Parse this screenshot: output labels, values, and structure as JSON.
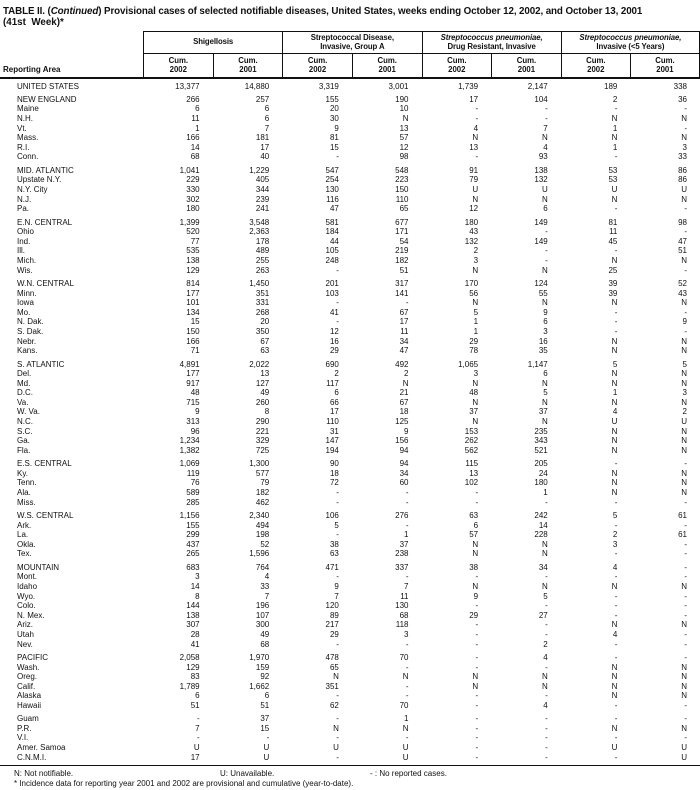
{
  "title": {
    "part1": "TABLE II. (",
    "continued": "Continued",
    "part2": ") Provisional cases of selected notifiable diseases, United States, weeks ending October 12, 2002, and October 13, 2001",
    "line2": "(41st  Week)*"
  },
  "table": {
    "header": {
      "reporting_area": "Reporting Area",
      "groups": [
        {
          "line1": "Shigellosis",
          "line1_italic": false,
          "line2": null,
          "subcolumns": [
            {
              "label": "Cum.",
              "year": "2002"
            },
            {
              "label": "Cum.",
              "year": "2001"
            }
          ]
        },
        {
          "line1": "Streptococcal Disease,",
          "line1_italic": false,
          "line2": "Invasive, Group A",
          "subcolumns": [
            {
              "label": "Cum.",
              "year": "2002"
            },
            {
              "label": "Cum.",
              "year": "2001"
            }
          ]
        },
        {
          "line1": "Streptococcus pneumoniae,",
          "line1_italic": true,
          "line2": "Drug Resistant, Invasive",
          "subcolumns": [
            {
              "label": "Cum.",
              "year": "2002"
            },
            {
              "label": "Cum.",
              "year": "2001"
            }
          ]
        },
        {
          "line1": "Streptococcus pneumoniae,",
          "line1_italic": true,
          "line2": "Invasive (<5 Years)",
          "subcolumns": [
            {
              "label": "Cum.",
              "year": "2002"
            },
            {
              "label": "Cum.",
              "year": "2001"
            }
          ]
        }
      ]
    },
    "groups": [
      {
        "rows": [
          {
            "area": "UNITED STATES",
            "values": [
              "13,377",
              "14,880",
              "3,319",
              "3,001",
              "1,739",
              "2,147",
              "189",
              "338"
            ]
          }
        ]
      },
      {
        "rows": [
          {
            "area": "NEW ENGLAND",
            "values": [
              "266",
              "257",
              "155",
              "190",
              "17",
              "104",
              "2",
              "36"
            ]
          },
          {
            "area": "Maine",
            "values": [
              "6",
              "6",
              "20",
              "10",
              "-",
              "-",
              "-",
              "-"
            ]
          },
          {
            "area": "N.H.",
            "values": [
              "11",
              "6",
              "30",
              "N",
              "-",
              "-",
              "N",
              "N"
            ]
          },
          {
            "area": "Vt.",
            "values": [
              "1",
              "7",
              "9",
              "13",
              "4",
              "7",
              "1",
              "-"
            ]
          },
          {
            "area": "Mass.",
            "values": [
              "166",
              "181",
              "81",
              "57",
              "N",
              "N",
              "N",
              "N"
            ]
          },
          {
            "area": "R.I.",
            "values": [
              "14",
              "17",
              "15",
              "12",
              "13",
              "4",
              "1",
              "3"
            ]
          },
          {
            "area": "Conn.",
            "values": [
              "68",
              "40",
              "-",
              "98",
              "-",
              "93",
              "-",
              "33"
            ]
          }
        ]
      },
      {
        "rows": [
          {
            "area": "MID. ATLANTIC",
            "values": [
              "1,041",
              "1,229",
              "547",
              "548",
              "91",
              "138",
              "53",
              "86"
            ]
          },
          {
            "area": "Upstate N.Y.",
            "values": [
              "229",
              "405",
              "254",
              "223",
              "79",
              "132",
              "53",
              "86"
            ]
          },
          {
            "area": "N.Y. City",
            "values": [
              "330",
              "344",
              "130",
              "150",
              "U",
              "U",
              "U",
              "U"
            ]
          },
          {
            "area": "N.J.",
            "values": [
              "302",
              "239",
              "116",
              "110",
              "N",
              "N",
              "N",
              "N"
            ]
          },
          {
            "area": "Pa.",
            "values": [
              "180",
              "241",
              "47",
              "65",
              "12",
              "6",
              "-",
              "-"
            ]
          }
        ]
      },
      {
        "rows": [
          {
            "area": "E.N. CENTRAL",
            "values": [
              "1,399",
              "3,548",
              "581",
              "677",
              "180",
              "149",
              "81",
              "98"
            ]
          },
          {
            "area": "Ohio",
            "values": [
              "520",
              "2,363",
              "184",
              "171",
              "43",
              "-",
              "11",
              "-"
            ]
          },
          {
            "area": "Ind.",
            "values": [
              "77",
              "178",
              "44",
              "54",
              "132",
              "149",
              "45",
              "47"
            ]
          },
          {
            "area": "Ill.",
            "values": [
              "535",
              "489",
              "105",
              "219",
              "2",
              "-",
              "-",
              "51"
            ]
          },
          {
            "area": "Mich.",
            "values": [
              "138",
              "255",
              "248",
              "182",
              "3",
              "-",
              "N",
              "N"
            ]
          },
          {
            "area": "Wis.",
            "values": [
              "129",
              "263",
              "-",
              "51",
              "N",
              "N",
              "25",
              "-"
            ]
          }
        ]
      },
      {
        "rows": [
          {
            "area": "W.N. CENTRAL",
            "values": [
              "814",
              "1,450",
              "201",
              "317",
              "170",
              "124",
              "39",
              "52"
            ]
          },
          {
            "area": "Minn.",
            "values": [
              "177",
              "351",
              "103",
              "141",
              "56",
              "55",
              "39",
              "43"
            ]
          },
          {
            "area": "Iowa",
            "values": [
              "101",
              "331",
              "-",
              "-",
              "N",
              "N",
              "N",
              "N"
            ]
          },
          {
            "area": "Mo.",
            "values": [
              "134",
              "268",
              "41",
              "67",
              "5",
              "9",
              "-",
              "-"
            ]
          },
          {
            "area": "N. Dak.",
            "values": [
              "15",
              "20",
              "-",
              "17",
              "1",
              "6",
              "-",
              "9"
            ]
          },
          {
            "area": "S. Dak.",
            "values": [
              "150",
              "350",
              "12",
              "11",
              "1",
              "3",
              "-",
              "-"
            ]
          },
          {
            "area": "Nebr.",
            "values": [
              "166",
              "67",
              "16",
              "34",
              "29",
              "16",
              "N",
              "N"
            ]
          },
          {
            "area": "Kans.",
            "values": [
              "71",
              "63",
              "29",
              "47",
              "78",
              "35",
              "N",
              "N"
            ]
          }
        ]
      },
      {
        "rows": [
          {
            "area": "S. ATLANTIC",
            "values": [
              "4,891",
              "2,022",
              "690",
              "492",
              "1,065",
              "1,147",
              "5",
              "5"
            ]
          },
          {
            "area": "Del.",
            "values": [
              "177",
              "13",
              "2",
              "2",
              "3",
              "6",
              "N",
              "N"
            ]
          },
          {
            "area": "Md.",
            "values": [
              "917",
              "127",
              "117",
              "N",
              "N",
              "N",
              "N",
              "N"
            ]
          },
          {
            "area": "D.C.",
            "values": [
              "48",
              "49",
              "6",
              "21",
              "48",
              "5",
              "1",
              "3"
            ]
          },
          {
            "area": "Va.",
            "values": [
              "715",
              "260",
              "66",
              "67",
              "N",
              "N",
              "N",
              "N"
            ]
          },
          {
            "area": "W. Va.",
            "values": [
              "9",
              "8",
              "17",
              "18",
              "37",
              "37",
              "4",
              "2"
            ]
          },
          {
            "area": "N.C.",
            "values": [
              "313",
              "290",
              "110",
              "125",
              "N",
              "N",
              "U",
              "U"
            ]
          },
          {
            "area": "S.C.",
            "values": [
              "96",
              "221",
              "31",
              "9",
              "153",
              "235",
              "N",
              "N"
            ]
          },
          {
            "area": "Ga.",
            "values": [
              "1,234",
              "329",
              "147",
              "156",
              "262",
              "343",
              "N",
              "N"
            ]
          },
          {
            "area": "Fla.",
            "values": [
              "1,382",
              "725",
              "194",
              "94",
              "562",
              "521",
              "N",
              "N"
            ]
          }
        ]
      },
      {
        "rows": [
          {
            "area": "E.S. CENTRAL",
            "values": [
              "1,069",
              "1,300",
              "90",
              "94",
              "115",
              "205",
              "-",
              "-"
            ]
          },
          {
            "area": "Ky.",
            "values": [
              "119",
              "577",
              "18",
              "34",
              "13",
              "24",
              "N",
              "N"
            ]
          },
          {
            "area": "Tenn.",
            "values": [
              "76",
              "79",
              "72",
              "60",
              "102",
              "180",
              "N",
              "N"
            ]
          },
          {
            "area": "Ala.",
            "values": [
              "589",
              "182",
              "-",
              "-",
              "-",
              "1",
              "N",
              "N"
            ]
          },
          {
            "area": "Miss.",
            "values": [
              "285",
              "462",
              "-",
              "-",
              "-",
              "-",
              "-",
              "-"
            ]
          }
        ]
      },
      {
        "rows": [
          {
            "area": "W.S. CENTRAL",
            "values": [
              "1,156",
              "2,340",
              "106",
              "276",
              "63",
              "242",
              "5",
              "61"
            ]
          },
          {
            "area": "Ark.",
            "values": [
              "155",
              "494",
              "5",
              "-",
              "6",
              "14",
              "-",
              "-"
            ]
          },
          {
            "area": "La.",
            "values": [
              "299",
              "198",
              "-",
              "1",
              "57",
              "228",
              "2",
              "61"
            ]
          },
          {
            "area": "Okla.",
            "values": [
              "437",
              "52",
              "38",
              "37",
              "N",
              "N",
              "3",
              "-"
            ]
          },
          {
            "area": "Tex.",
            "values": [
              "265",
              "1,596",
              "63",
              "238",
              "N",
              "N",
              "-",
              "-"
            ]
          }
        ]
      },
      {
        "rows": [
          {
            "area": "MOUNTAIN",
            "values": [
              "683",
              "764",
              "471",
              "337",
              "38",
              "34",
              "4",
              "-"
            ]
          },
          {
            "area": "Mont.",
            "values": [
              "3",
              "4",
              "-",
              "-",
              "-",
              "-",
              "-",
              "-"
            ]
          },
          {
            "area": "Idaho",
            "values": [
              "14",
              "33",
              "9",
              "7",
              "N",
              "N",
              "N",
              "N"
            ]
          },
          {
            "area": "Wyo.",
            "values": [
              "8",
              "7",
              "7",
              "11",
              "9",
              "5",
              "-",
              "-"
            ]
          },
          {
            "area": "Colo.",
            "values": [
              "144",
              "196",
              "120",
              "130",
              "-",
              "-",
              "-",
              "-"
            ]
          },
          {
            "area": "N. Mex.",
            "values": [
              "138",
              "107",
              "89",
              "68",
              "29",
              "27",
              "-",
              "-"
            ]
          },
          {
            "area": "Ariz.",
            "values": [
              "307",
              "300",
              "217",
              "118",
              "-",
              "-",
              "N",
              "N"
            ]
          },
          {
            "area": "Utah",
            "values": [
              "28",
              "49",
              "29",
              "3",
              "-",
              "-",
              "4",
              "-"
            ]
          },
          {
            "area": "Nev.",
            "values": [
              "41",
              "68",
              "-",
              "-",
              "-",
              "2",
              "-",
              "-"
            ]
          }
        ]
      },
      {
        "rows": [
          {
            "area": "PACIFIC",
            "values": [
              "2,058",
              "1,970",
              "478",
              "70",
              "-",
              "4",
              "-",
              "-"
            ]
          },
          {
            "area": "Wash.",
            "values": [
              "129",
              "159",
              "65",
              "-",
              "-",
              "-",
              "N",
              "N"
            ]
          },
          {
            "area": "Oreg.",
            "values": [
              "83",
              "92",
              "N",
              "N",
              "N",
              "N",
              "N",
              "N"
            ]
          },
          {
            "area": "Calif.",
            "values": [
              "1,789",
              "1,662",
              "351",
              "-",
              "N",
              "N",
              "N",
              "N"
            ]
          },
          {
            "area": "Alaska",
            "values": [
              "6",
              "6",
              "-",
              "-",
              "-",
              "-",
              "N",
              "N"
            ]
          },
          {
            "area": "Hawaii",
            "values": [
              "51",
              "51",
              "62",
              "70",
              "-",
              "4",
              "-",
              "-"
            ]
          }
        ]
      },
      {
        "rows": [
          {
            "area": "Guam",
            "values": [
              "-",
              "37",
              "-",
              "1",
              "-",
              "-",
              "-",
              "-"
            ]
          },
          {
            "area": "P.R.",
            "values": [
              "7",
              "15",
              "N",
              "N",
              "-",
              "-",
              "N",
              "N"
            ]
          },
          {
            "area": "V.I.",
            "values": [
              "-",
              "-",
              "-",
              "-",
              "-",
              "-",
              "-",
              "-"
            ]
          },
          {
            "area": "Amer. Samoa",
            "values": [
              "U",
              "U",
              "U",
              "U",
              "-",
              "-",
              "U",
              "U"
            ]
          },
          {
            "area": "C.N.M.I.",
            "values": [
              "17",
              "U",
              "-",
              "U",
              "-",
              "-",
              "-",
              "U"
            ]
          }
        ]
      }
    ]
  },
  "footnotes": {
    "legend": [
      "N: Not notifiable.",
      "U: Unavailable.",
      "- : No reported cases."
    ],
    "note": "* Incidence data for reporting year 2001 and 2002 are provisional and cumulative (year-to-date)."
  }
}
